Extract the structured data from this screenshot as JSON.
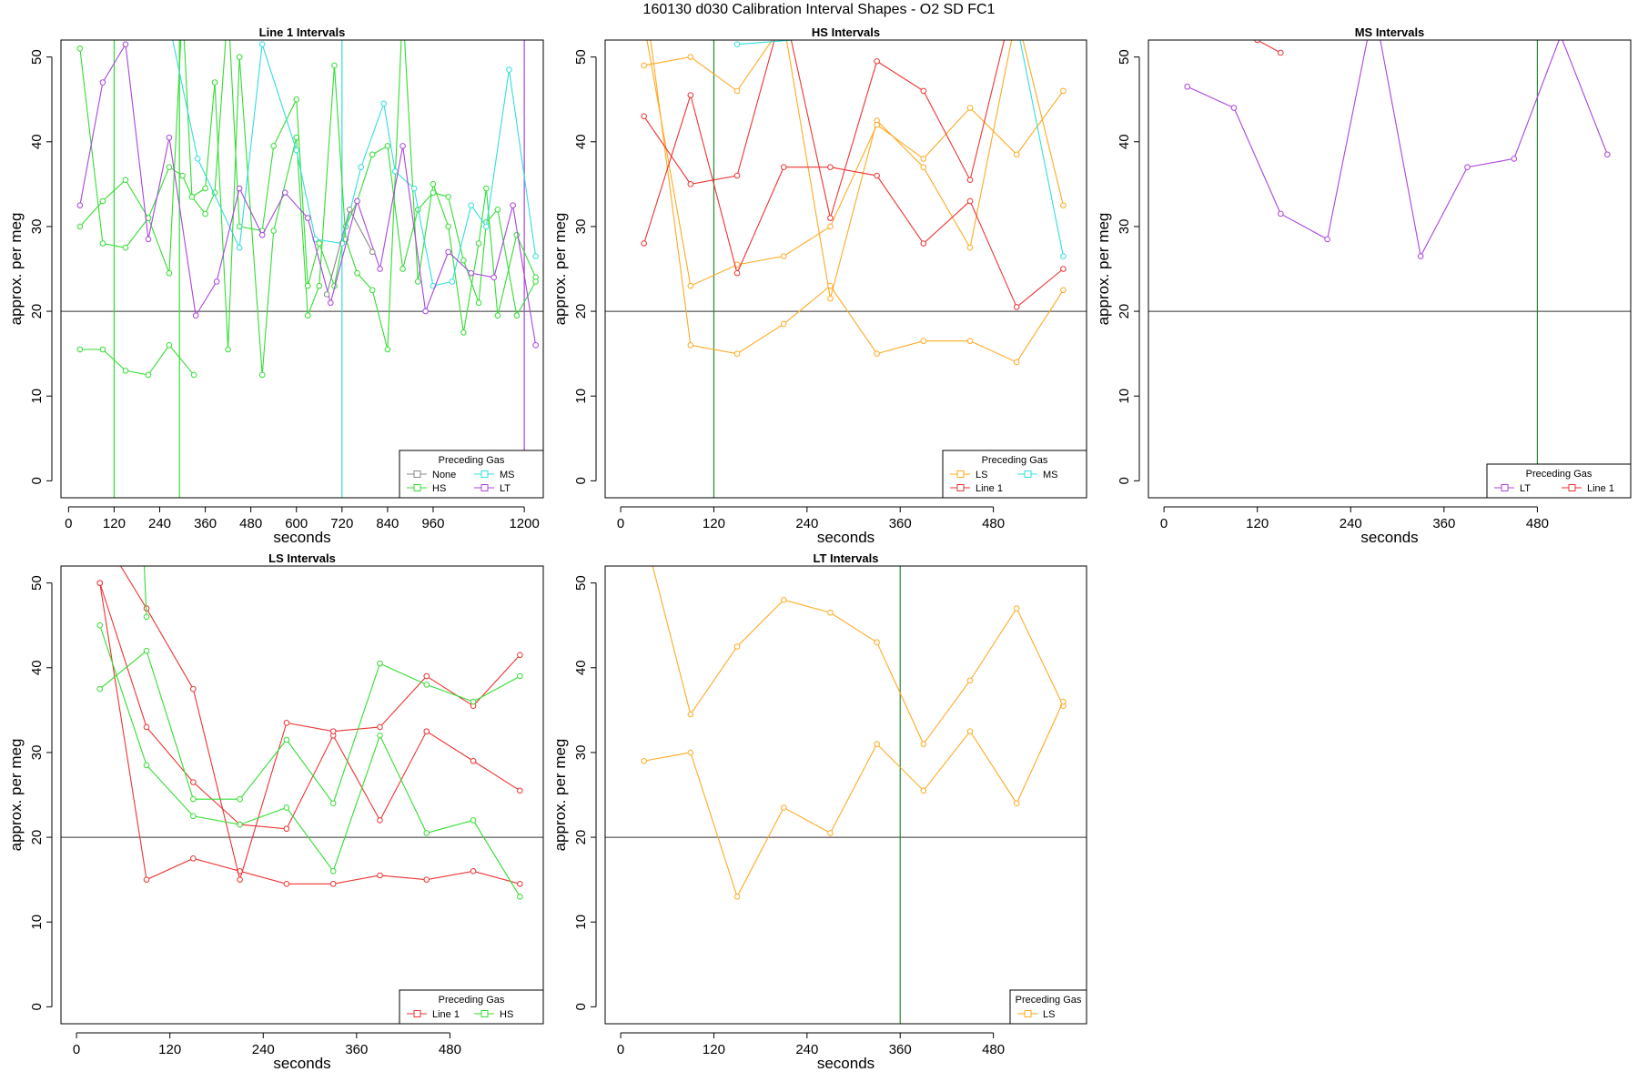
{
  "page": {
    "suptitle": "160130   d030   Calibration Interval Shapes - O2 SD FC1"
  },
  "colors": {
    "None": "#888888",
    "HS": "#33dd33",
    "MS": "#33dddd",
    "LT": "#aa44dd",
    "LS": "#ffaa22",
    "Line 1": "#ee3333",
    "axis": "#000000",
    "refline": "#333333",
    "vline": "#228833"
  },
  "chart_data": [
    {
      "type": "line",
      "title": "Line 1 Intervals",
      "xlabel": "seconds",
      "ylabel": "approx. per meg",
      "xlim": [
        -20,
        1250
      ],
      "ylim": [
        -2,
        52
      ],
      "xticks": [
        0,
        120,
        240,
        360,
        480,
        600,
        720,
        840,
        960,
        1200
      ],
      "yticks": [
        0,
        10,
        20,
        30,
        40,
        50
      ],
      "hline": 20,
      "vlines": [
        {
          "x": 120,
          "color": "HS"
        },
        {
          "x": 292,
          "color": "HS"
        },
        {
          "x": 720,
          "color": "MS"
        },
        {
          "x": 1200,
          "color": "LT"
        }
      ],
      "legend": {
        "title": "Preceding Gas",
        "position": "bottom-right",
        "entries": [
          "None",
          "MS",
          "HS",
          "LT"
        ]
      },
      "series": [
        {
          "name": "HS",
          "x": [
            30,
            90,
            150,
            210,
            265,
            300,
            325,
            360,
            385,
            420,
            450,
            510,
            540,
            600,
            630,
            660,
            700,
            730,
            760,
            800,
            840,
            880,
            920,
            960,
            1000,
            1040,
            1080,
            1100,
            1130,
            1180,
            1230
          ],
          "y": [
            51,
            28,
            27.5,
            31,
            24.5,
            56,
            33.5,
            34.5,
            47,
            15.5,
            50,
            12.5,
            29.5,
            40.5,
            19.5,
            23,
            49,
            28.5,
            24.5,
            22.5,
            15.5,
            56,
            23.5,
            35,
            30,
            17.5,
            28,
            34.5,
            19.5,
            29,
            24
          ]
        },
        {
          "name": "HS",
          "x": [
            30,
            90,
            150,
            210,
            265,
            300,
            325,
            360,
            385,
            420,
            450,
            510,
            540,
            600,
            630,
            660,
            700,
            730,
            760,
            800,
            840,
            880,
            920,
            960,
            1000,
            1040,
            1080,
            1100,
            1130,
            1180,
            1230
          ],
          "y": [
            30,
            33,
            35.5,
            31,
            37,
            36,
            33.5,
            31.5,
            34,
            56,
            30,
            29.5,
            39.5,
            45,
            23,
            28,
            23,
            30,
            33,
            38.5,
            39.5,
            25,
            32,
            34,
            33.5,
            26,
            21,
            30.5,
            32,
            19.5,
            23.5
          ]
        },
        {
          "name": "HS",
          "x": [
            30,
            90,
            150,
            210,
            265,
            330
          ],
          "y": [
            15.5,
            15.5,
            13,
            12.5,
            16,
            12.5
          ]
        },
        {
          "name": "MS",
          "x": [
            260,
            340,
            450,
            510,
            600,
            650,
            720,
            770,
            830,
            860,
            910,
            960,
            1010,
            1060,
            1100,
            1160,
            1230
          ],
          "y": [
            55,
            38,
            27.5,
            51.5,
            39,
            28.5,
            28,
            37,
            44.5,
            36.5,
            34.5,
            23,
            23.5,
            32.5,
            30,
            48.5,
            26.5
          ]
        },
        {
          "name": "LT",
          "x": [
            30,
            90,
            150,
            210,
            265,
            335,
            390,
            450,
            510,
            570,
            630,
            690,
            760,
            820,
            880,
            940,
            1000,
            1060,
            1120,
            1170,
            1230
          ],
          "y": [
            32.5,
            47,
            51.5,
            28.5,
            40.5,
            19.5,
            23.5,
            34.5,
            29,
            34,
            31,
            21,
            33,
            25,
            39.5,
            20,
            27,
            24.5,
            24,
            32.5,
            16
          ]
        },
        {
          "name": "None",
          "x": [
            680,
            740,
            800
          ],
          "y": [
            22,
            32,
            27
          ]
        }
      ]
    },
    {
      "type": "line",
      "title": "HS Intervals",
      "xlabel": "seconds",
      "ylabel": "approx. per meg",
      "xlim": [
        -20,
        600
      ],
      "ylim": [
        -2,
        52
      ],
      "xticks": [
        0,
        120,
        240,
        360,
        480
      ],
      "yticks": [
        0,
        10,
        20,
        30,
        40,
        50
      ],
      "hline": 20,
      "vlines": [
        {
          "x": 120,
          "color": "vline"
        }
      ],
      "legend": {
        "title": "Preceding Gas",
        "position": "bottom-right",
        "entries": [
          "LS",
          "MS",
          "Line 1"
        ]
      },
      "series": [
        {
          "name": "LS",
          "x": [
            30,
            90,
            150,
            210,
            270,
            330,
            390,
            450,
            510,
            570
          ],
          "y": [
            49,
            50,
            46,
            54,
            21.5,
            42.5,
            37,
            27.5,
            55,
            32.5
          ]
        },
        {
          "name": "LS",
          "x": [
            30,
            90,
            150,
            210,
            270,
            330,
            390,
            450,
            510,
            570
          ],
          "y": [
            54,
            23,
            25.5,
            26.5,
            30,
            42,
            38,
            44,
            38.5,
            46
          ]
        },
        {
          "name": "LS",
          "x": [
            30,
            90,
            150,
            210,
            270,
            330,
            390,
            450,
            510,
            570
          ],
          "y": [
            58,
            16,
            15,
            18.5,
            23,
            15,
            16.5,
            16.5,
            14,
            22.5
          ]
        },
        {
          "name": "Line 1",
          "x": [
            30,
            90,
            150,
            210,
            270,
            330,
            390,
            450,
            510,
            570
          ],
          "y": [
            28,
            45.5,
            24.5,
            37,
            37,
            36,
            28,
            33,
            20.5,
            25
          ]
        },
        {
          "name": "Line 1",
          "x": [
            30,
            90,
            150,
            210,
            270,
            330,
            390,
            450,
            510
          ],
          "y": [
            43,
            35,
            36,
            56,
            31,
            49.5,
            46,
            35.5,
            58
          ]
        },
        {
          "name": "MS",
          "x": [
            150,
            510,
            570
          ],
          "y": [
            51.5,
            54,
            26.5
          ]
        }
      ]
    },
    {
      "type": "line",
      "title": "MS Intervals",
      "xlabel": "seconds",
      "ylabel": "approx. per meg",
      "xlim": [
        -20,
        600
      ],
      "ylim": [
        -2,
        52
      ],
      "xticks": [
        0,
        120,
        240,
        360,
        480
      ],
      "yticks": [
        0,
        10,
        20,
        30,
        40,
        50
      ],
      "hline": 20,
      "vlines": [
        {
          "x": 480,
          "color": "vline"
        }
      ],
      "legend": {
        "title": "Preceding Gas",
        "position": "bottom-right",
        "entries": [
          "LT",
          "Line 1"
        ]
      },
      "series": [
        {
          "name": "LT",
          "x": [
            30,
            90,
            150,
            210,
            270,
            330,
            390,
            450,
            510,
            570
          ],
          "y": [
            46.5,
            44,
            31.5,
            28.5,
            56,
            26.5,
            37,
            38,
            52.5,
            38.5
          ]
        },
        {
          "name": "Line 1",
          "x": [
            120,
            150
          ],
          "y": [
            52,
            50.5
          ]
        }
      ]
    },
    {
      "type": "line",
      "title": "LS Intervals",
      "xlabel": "seconds",
      "ylabel": "approx. per meg",
      "xlim": [
        -20,
        600
      ],
      "ylim": [
        -2,
        52
      ],
      "xticks": [
        0,
        120,
        240,
        360,
        480
      ],
      "yticks": [
        0,
        10,
        20,
        30,
        40,
        50
      ],
      "hline": 20,
      "vlines": [],
      "legend": {
        "title": "Preceding Gas",
        "position": "bottom-right",
        "entries": [
          "Line 1",
          "HS"
        ]
      },
      "series": [
        {
          "name": "Line 1",
          "x": [
            30,
            90,
            150,
            210,
            270,
            330,
            390,
            450,
            510,
            570
          ],
          "y": [
            50,
            15,
            17.5,
            16,
            14.5,
            14.5,
            15.5,
            15,
            16,
            14.5
          ]
        },
        {
          "name": "Line 1",
          "x": [
            30,
            90,
            150,
            210,
            270,
            330,
            390,
            450,
            510,
            570
          ],
          "y": [
            50,
            33,
            26.5,
            21.5,
            21,
            32,
            22,
            32.5,
            29,
            25.5
          ]
        },
        {
          "name": "Line 1",
          "x": [
            30,
            90,
            150,
            210,
            270,
            330,
            390,
            450,
            510,
            570
          ],
          "y": [
            56,
            47,
            37.5,
            15,
            33.5,
            32.5,
            33,
            39,
            35.5,
            41.5
          ]
        },
        {
          "name": "HS",
          "x": [
            30,
            90,
            150,
            210,
            270,
            330,
            390,
            450,
            510,
            570
          ],
          "y": [
            37.5,
            42,
            24.5,
            24.5,
            31.5,
            24,
            40.5,
            38,
            36,
            39
          ]
        },
        {
          "name": "HS",
          "x": [
            30,
            90,
            150,
            210,
            270,
            330,
            390,
            450,
            510,
            570
          ],
          "y": [
            45,
            28.5,
            22.5,
            21.5,
            23.5,
            16,
            32,
            20.5,
            22,
            13
          ]
        },
        {
          "name": "HS",
          "x": [
            90,
            85
          ],
          "y": [
            46,
            56
          ]
        }
      ]
    },
    {
      "type": "line",
      "title": "LT Intervals",
      "xlabel": "seconds",
      "ylabel": "approx. per meg",
      "xlim": [
        -20,
        600
      ],
      "ylim": [
        -2,
        52
      ],
      "xticks": [
        0,
        120,
        240,
        360,
        480
      ],
      "yticks": [
        0,
        10,
        20,
        30,
        40,
        50
      ],
      "hline": 20,
      "vlines": [
        {
          "x": 360,
          "color": "vline"
        }
      ],
      "legend": {
        "title": "Preceding Gas",
        "position": "bottom-right",
        "entries": [
          "LS"
        ]
      },
      "series": [
        {
          "name": "LS",
          "x": [
            30,
            90,
            150,
            210,
            270,
            330,
            390,
            450,
            510,
            570
          ],
          "y": [
            56,
            34.5,
            42.5,
            48,
            46.5,
            43,
            31,
            38.5,
            47,
            35.5
          ]
        },
        {
          "name": "LS",
          "x": [
            30,
            90,
            150,
            210,
            270,
            330,
            390,
            450,
            510,
            570
          ],
          "y": [
            29,
            30,
            13,
            23.5,
            20.5,
            31,
            25.5,
            32.5,
            24,
            36
          ]
        }
      ]
    }
  ]
}
